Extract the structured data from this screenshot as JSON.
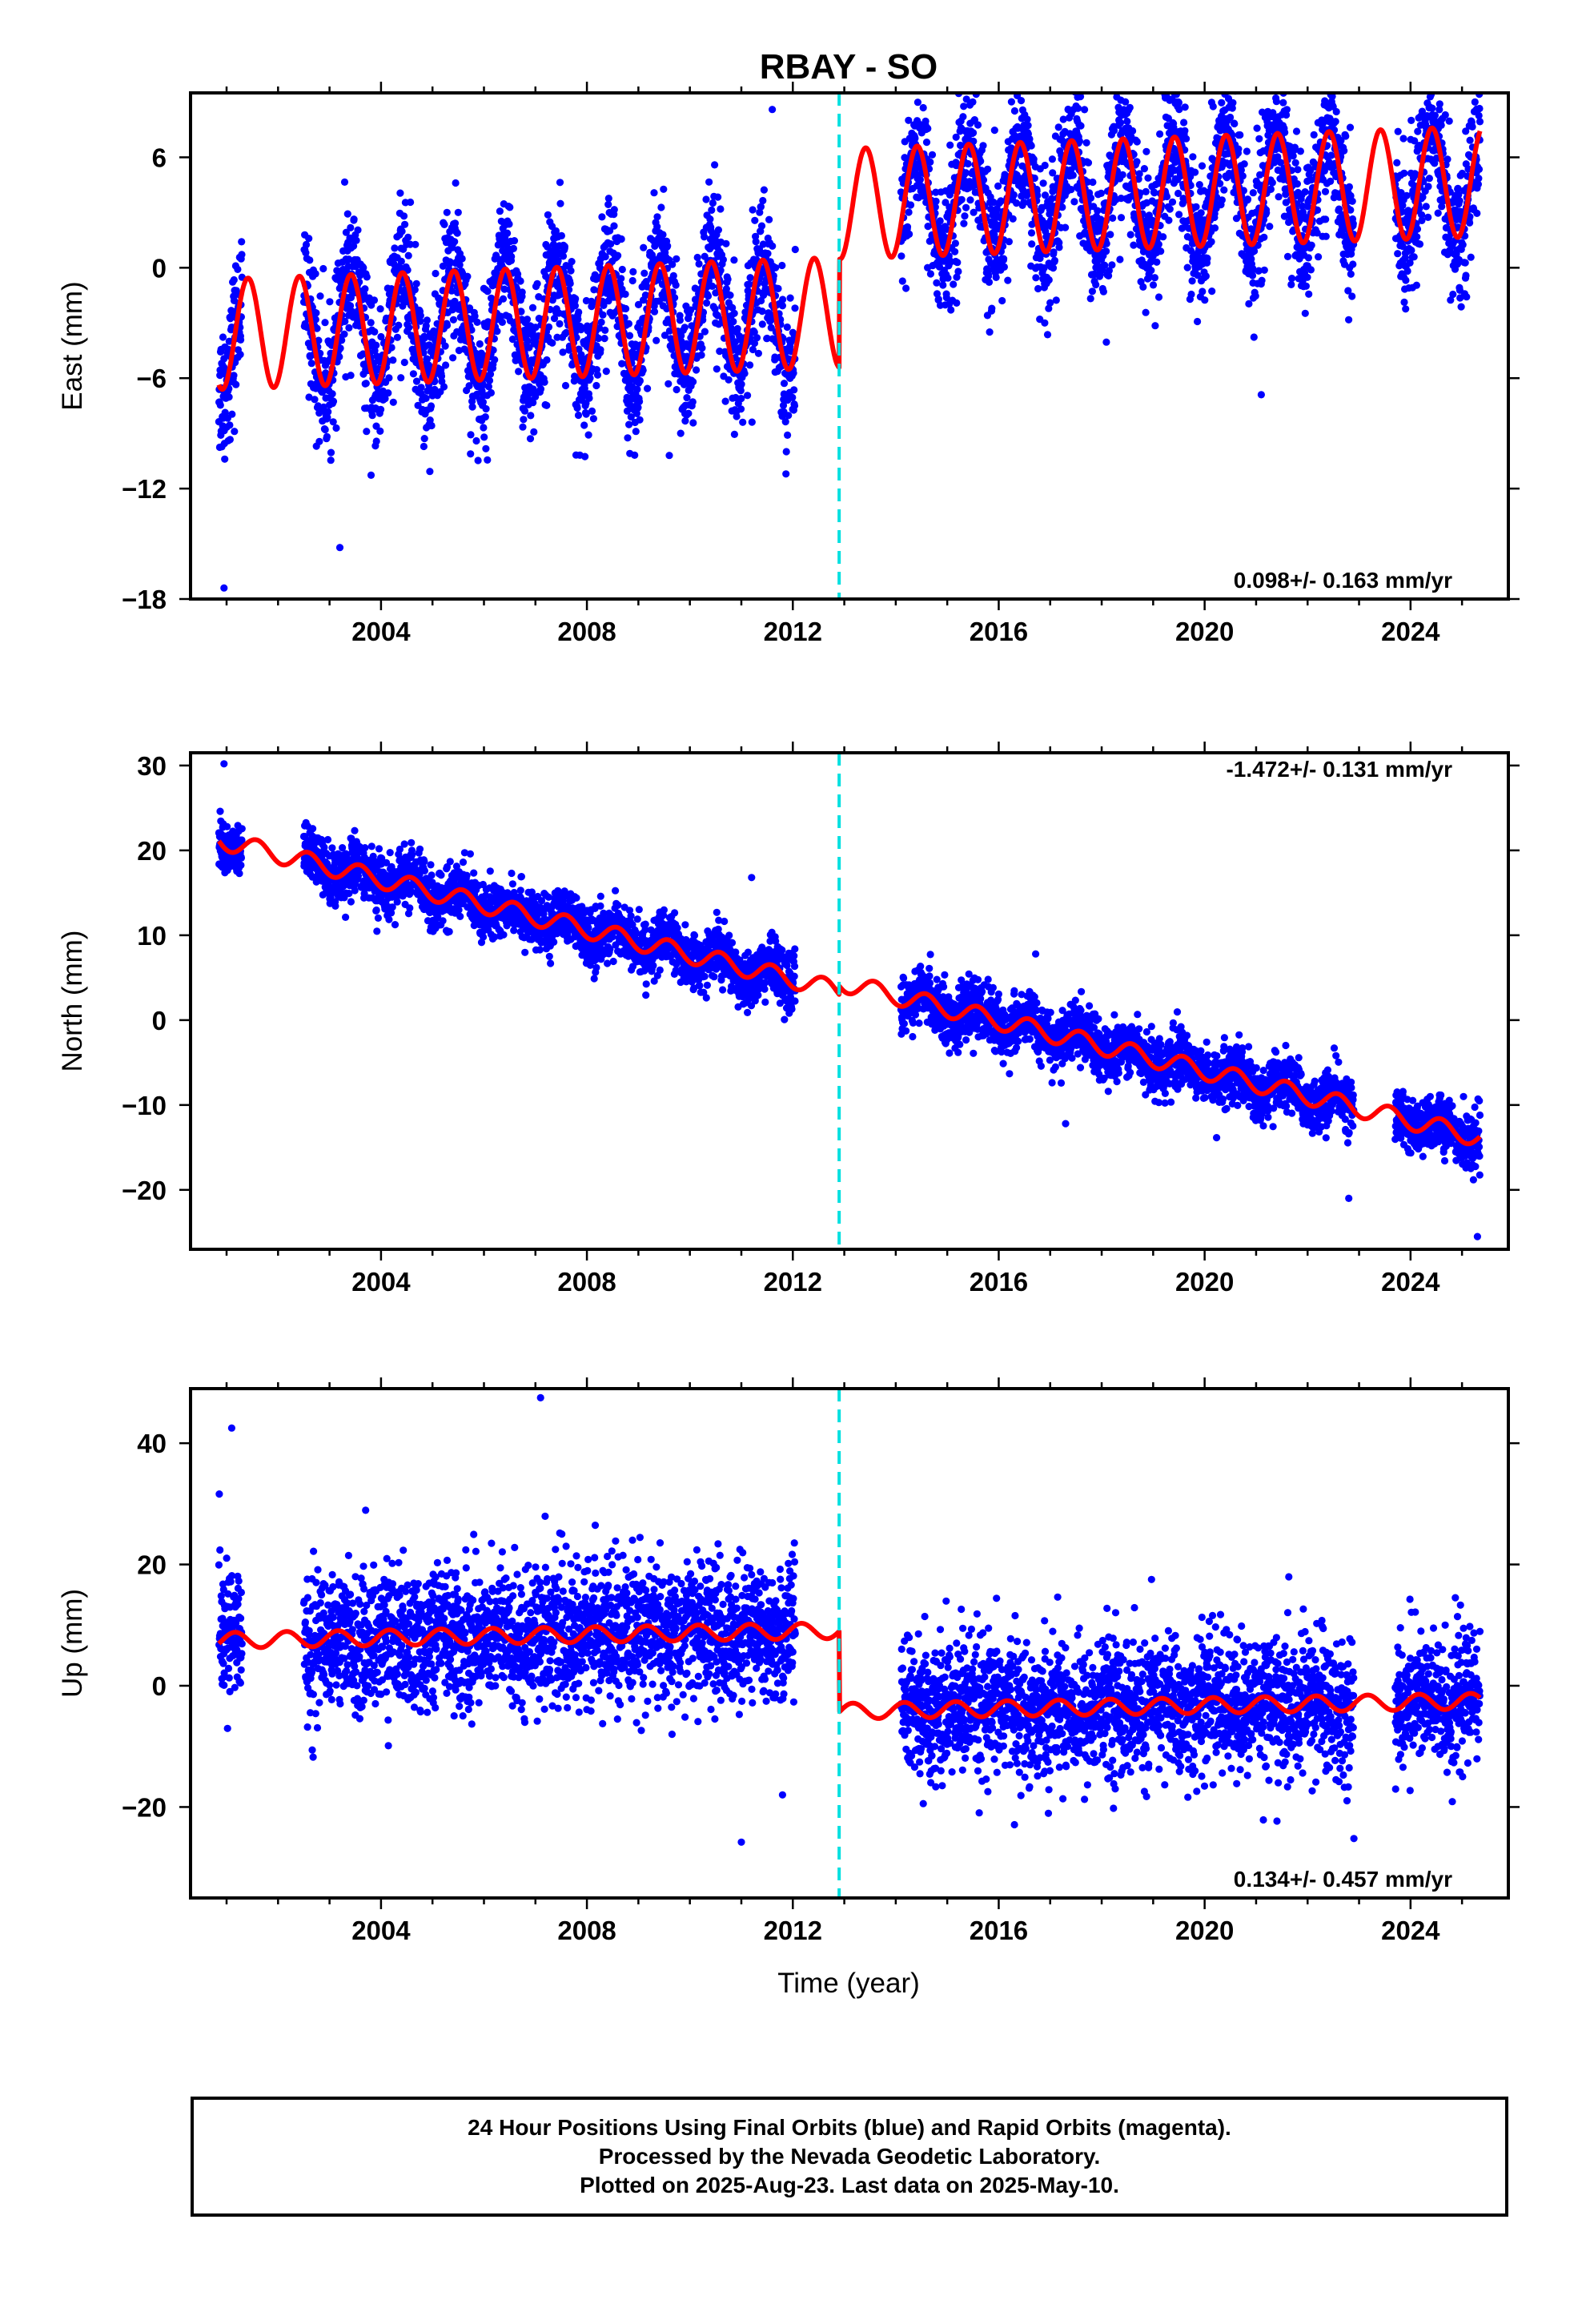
{
  "title": "RBAY - SO",
  "xlabel": "Time (year)",
  "footer": {
    "line1": "24 Hour Positions Using Final Orbits (blue) and Rapid Orbits (magenta).",
    "line2": "Processed by the Nevada Geodetic Laboratory.",
    "line3": "Plotted on 2025-Aug-23. Last data on 2025-May-10."
  },
  "colors": {
    "data_points": "#0000ff",
    "model_fit": "#ff0000",
    "offset_line": "#00e0e0",
    "frame": "#000000"
  },
  "offset_epoch": 2012.9,
  "chart_data": [
    {
      "type": "scatter",
      "component": "east",
      "ylabel": "East (mm)",
      "rate_label": "0.098+/- 0.163 mm/yr",
      "rate_position": "bottom-right",
      "xlim": [
        2000.3,
        2025.9
      ],
      "ylim": [
        -18,
        9.5
      ],
      "xticks": [
        "2004",
        "2008",
        "2012",
        "2016",
        "2020",
        "2024"
      ],
      "yticks": [
        "-18",
        "-12",
        "-6",
        "0",
        "6"
      ],
      "data_span": [
        2000.85,
        2025.35
      ],
      "data_gaps": [
        [
          2001.3,
          2002.5
        ],
        [
          2012.05,
          2014.1
        ],
        [
          2022.9,
          2023.7
        ]
      ],
      "model": {
        "pre_offset": {
          "intercept": -3.6,
          "rate": 0.098,
          "amplitude": 3.0,
          "phase_peak_month": 6
        },
        "post_offset": {
          "intercept": 2.3,
          "rate": 0.098,
          "amplitude": 3.0,
          "phase_peak_month": 6
        }
      },
      "scatter_std": 1.8,
      "outliers": [
        [
          2011.6,
          8.6
        ],
        [
          2000.95,
          -17.4
        ],
        [
          2003.2,
          -15.2
        ],
        [
          2009.6,
          -10.2
        ],
        [
          2021.1,
          -6.9
        ]
      ]
    },
    {
      "type": "scatter",
      "component": "north",
      "ylabel": "North (mm)",
      "rate_label": "-1.472+/- 0.131 mm/yr",
      "rate_position": "top-right",
      "xlim": [
        2000.3,
        2025.9
      ],
      "ylim": [
        -27,
        31.5
      ],
      "xticks": [
        "2004",
        "2008",
        "2012",
        "2016",
        "2020",
        "2024"
      ],
      "yticks": [
        "-20",
        "-10",
        "0",
        "10",
        "20",
        "30"
      ],
      "data_span": [
        2000.85,
        2025.35
      ],
      "data_gaps": [
        [
          2001.3,
          2002.5
        ],
        [
          2012.05,
          2014.1
        ],
        [
          2022.9,
          2023.7
        ]
      ],
      "model": {
        "pre_offset": {
          "intercept": 21.0,
          "rate": -1.472,
          "amplitude": 1.1,
          "phase_peak_month": 8
        },
        "post_offset": {
          "intercept": 22.0,
          "rate": -1.472,
          "amplitude": 1.1,
          "phase_peak_month": 8
        }
      },
      "scatter_std": 1.6,
      "outliers": [
        [
          2000.95,
          30.2
        ],
        [
          2011.2,
          16.8
        ],
        [
          2017.3,
          -12.2
        ],
        [
          2022.8,
          -21.0
        ],
        [
          2025.3,
          -25.5
        ]
      ]
    },
    {
      "type": "scatter",
      "component": "up",
      "ylabel": "Up (mm)",
      "rate_label": "0.134+/- 0.457 mm/yr",
      "rate_position": "bottom-right",
      "xlim": [
        2000.3,
        2025.9
      ],
      "ylim": [
        -35,
        49
      ],
      "xticks": [
        "2004",
        "2008",
        "2012",
        "2016",
        "2020",
        "2024"
      ],
      "yticks": [
        "-20",
        "0",
        "20",
        "40"
      ],
      "data_span": [
        2000.85,
        2025.35
      ],
      "data_gaps": [
        [
          2001.3,
          2002.5
        ],
        [
          2012.05,
          2014.1
        ],
        [
          2022.9,
          2023.7
        ]
      ],
      "model": {
        "pre_offset": {
          "intercept": 7.5,
          "rate": 0.134,
          "amplitude": 1.3,
          "phase_peak_month": 3
        },
        "post_offset": {
          "intercept": -5.8,
          "rate": 0.134,
          "amplitude": 1.3,
          "phase_peak_month": 3
        }
      },
      "scatter_std": 5.5,
      "outliers": [
        [
          2007.1,
          47.5
        ],
        [
          2001.1,
          42.5
        ],
        [
          2011.0,
          -25.8
        ],
        [
          2022.9,
          -25.2
        ],
        [
          2011.8,
          -18.0
        ]
      ]
    }
  ]
}
